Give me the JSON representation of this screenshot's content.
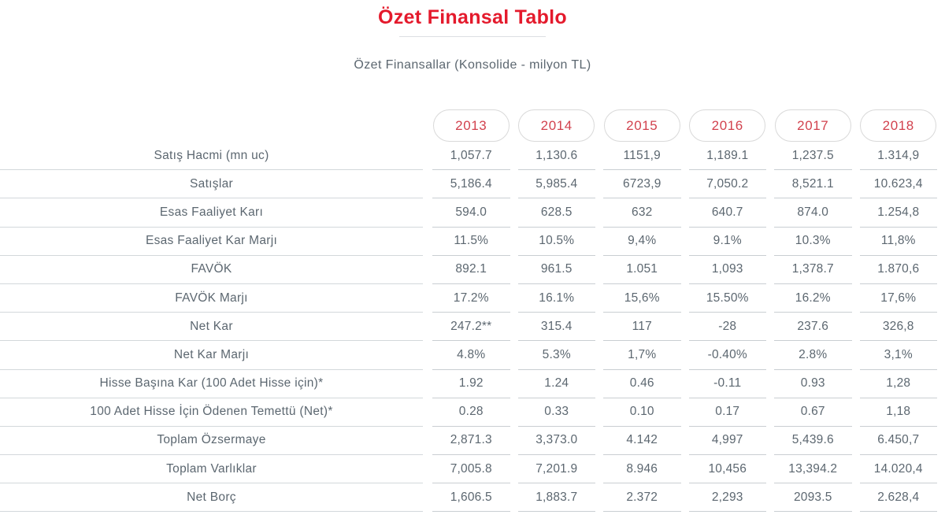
{
  "header": {
    "title": "Özet Finansal Tablo",
    "subtitle": "Özet Finansallar (Konsolide - milyon TL)"
  },
  "colors": {
    "title_red": "#e41a2c",
    "year_red": "#d2424e",
    "text_gray": "#5c6770",
    "line_gray": "#c9ced2",
    "pill_border": "#d9d9d9"
  },
  "chart_data": {
    "type": "table",
    "title": "Özet Finansal Tablo",
    "subtitle": "Özet Finansallar (Konsolide - milyon TL)",
    "categories": [
      "2013",
      "2014",
      "2015",
      "2016",
      "2017",
      "2018"
    ],
    "series": [
      {
        "name": "Satış Hacmi (mn uc)",
        "values": [
          "1,057.7",
          "1,130.6",
          "1151,9",
          "1,189.1",
          "1,237.5",
          "1.314,9"
        ]
      },
      {
        "name": "Satışlar",
        "values": [
          "5,186.4",
          "5,985.4",
          "6723,9",
          "7,050.2",
          "8,521.1",
          "10.623,4"
        ]
      },
      {
        "name": "Esas Faaliyet Karı",
        "values": [
          "594.0",
          "628.5",
          "632",
          "640.7",
          "874.0",
          "1.254,8"
        ]
      },
      {
        "name": "Esas Faaliyet Kar Marjı",
        "values": [
          "11.5%",
          "10.5%",
          "9,4%",
          "9.1%",
          "10.3%",
          "11,8%"
        ]
      },
      {
        "name": "FAVÖK",
        "values": [
          "892.1",
          "961.5",
          "1.051",
          "1,093",
          "1,378.7",
          "1.870,6"
        ]
      },
      {
        "name": "FAVÖK Marjı",
        "values": [
          "17.2%",
          "16.1%",
          "15,6%",
          "15.50%",
          "16.2%",
          "17,6%"
        ]
      },
      {
        "name": "Net Kar",
        "values": [
          "247.2**",
          "315.4",
          "117",
          "-28",
          "237.6",
          "326,8"
        ]
      },
      {
        "name": "Net Kar Marjı",
        "values": [
          "4.8%",
          "5.3%",
          "1,7%",
          "-0.40%",
          "2.8%",
          "3,1%"
        ]
      },
      {
        "name": "Hisse Başına Kar (100 Adet Hisse için)*",
        "values": [
          "1.92",
          "1.24",
          "0.46",
          "-0.11",
          "0.93",
          "1,28"
        ]
      },
      {
        "name": "100 Adet Hisse İçin Ödenen Temettü (Net)*",
        "values": [
          "0.28",
          "0.33",
          "0.10",
          "0.17",
          "0.67",
          "1,18"
        ]
      },
      {
        "name": "Toplam Özsermaye",
        "values": [
          "2,871.3",
          "3,373.0",
          "4.142",
          "4,997",
          "5,439.6",
          "6.450,7"
        ]
      },
      {
        "name": "Toplam Varlıklar",
        "values": [
          "7,005.8",
          "7,201.9",
          "8.946",
          "10,456",
          "13,394.2",
          "14.020,4"
        ]
      },
      {
        "name": "Net Borç",
        "values": [
          "1,606.5",
          "1,883.7",
          "2.372",
          "2,293",
          "2093.5",
          "2.628,4"
        ]
      }
    ]
  }
}
